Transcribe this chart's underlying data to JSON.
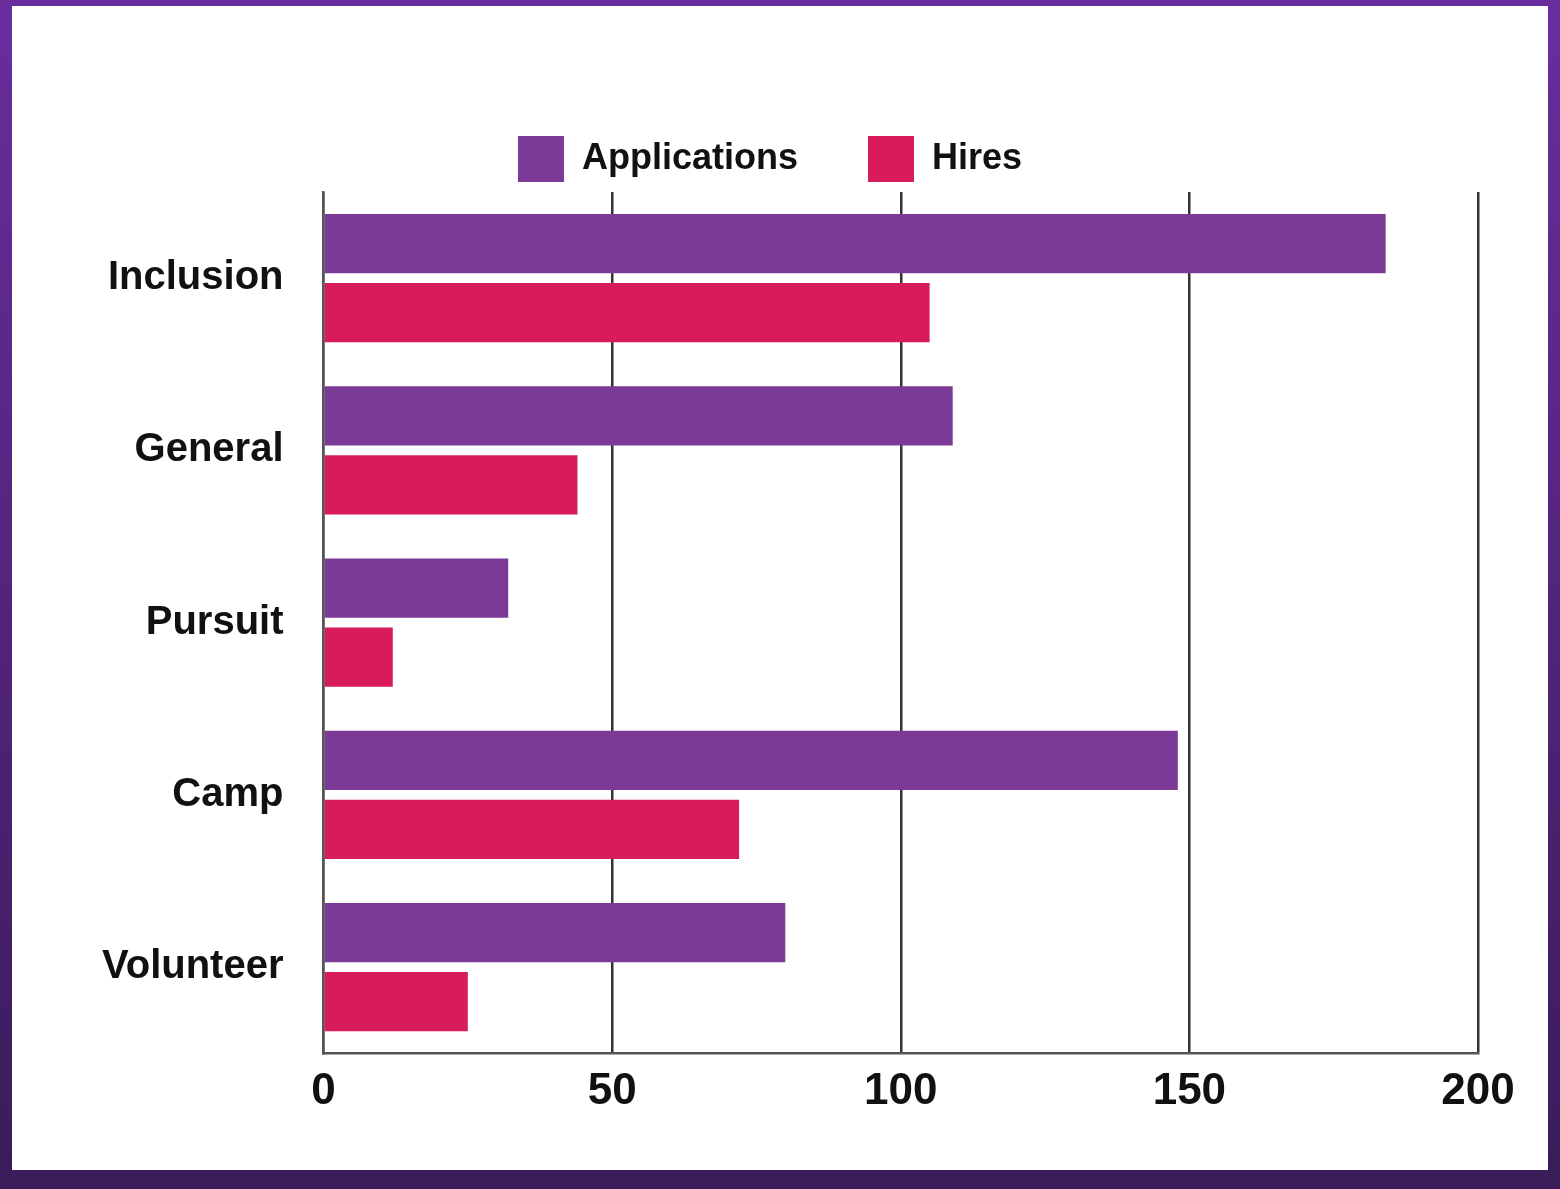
{
  "chart_data": {
    "type": "bar",
    "orientation": "horizontal",
    "categories": [
      "Inclusion",
      "General",
      "Pursuit",
      "Camp",
      "Volunteer"
    ],
    "series": [
      {
        "name": "Applications",
        "color": "#7b3a96",
        "values": [
          184,
          109,
          32,
          148,
          80
        ]
      },
      {
        "name": "Hires",
        "color": "#d81b5a",
        "values": [
          105,
          44,
          12,
          72,
          25
        ]
      }
    ],
    "xlim": [
      0,
      200
    ],
    "xticks": [
      0,
      50,
      100,
      150,
      200
    ],
    "grid": "x",
    "legend": "top"
  }
}
